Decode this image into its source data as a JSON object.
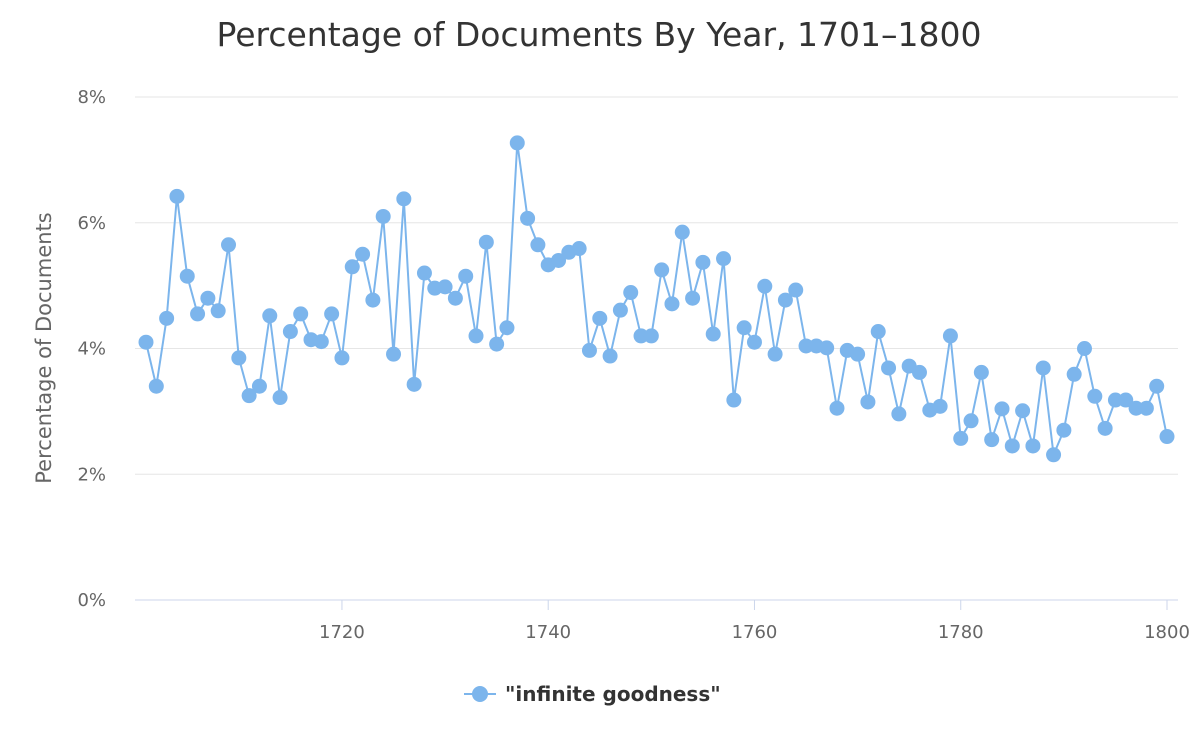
{
  "chart_data": {
    "type": "line",
    "title": "Percentage of Documents By Year, 1701–1800",
    "ylabel": "Percentage of Documents",
    "xlabel": "",
    "xlim": [
      1701,
      1800
    ],
    "ylim": [
      0,
      8
    ],
    "y_ticks": [
      0,
      2,
      4,
      6,
      8
    ],
    "y_tick_labels": [
      "0%",
      "2%",
      "4%",
      "6%",
      "8%"
    ],
    "x_ticks": [
      1720,
      1740,
      1760,
      1780,
      1800
    ],
    "x_tick_labels": [
      "1720",
      "1740",
      "1760",
      "1780",
      "1800"
    ],
    "grid": true,
    "legend_position": "bottom-center",
    "color": "#7cb5ec",
    "series": [
      {
        "name": "\"infinite goodness\"",
        "x": [
          1701,
          1702,
          1703,
          1704,
          1705,
          1706,
          1707,
          1708,
          1709,
          1710,
          1711,
          1712,
          1713,
          1714,
          1715,
          1716,
          1717,
          1718,
          1719,
          1720,
          1721,
          1722,
          1723,
          1724,
          1725,
          1726,
          1727,
          1728,
          1729,
          1730,
          1731,
          1732,
          1733,
          1734,
          1735,
          1736,
          1737,
          1738,
          1739,
          1740,
          1741,
          1742,
          1743,
          1744,
          1745,
          1746,
          1747,
          1748,
          1749,
          1750,
          1751,
          1752,
          1753,
          1754,
          1755,
          1756,
          1757,
          1758,
          1759,
          1760,
          1761,
          1762,
          1763,
          1764,
          1765,
          1766,
          1767,
          1768,
          1769,
          1770,
          1771,
          1772,
          1773,
          1774,
          1775,
          1776,
          1777,
          1778,
          1779,
          1780,
          1781,
          1782,
          1783,
          1784,
          1785,
          1786,
          1787,
          1788,
          1789,
          1790,
          1791,
          1792,
          1793,
          1794,
          1795,
          1796,
          1797,
          1798,
          1799,
          1800
        ],
        "values": [
          4.1,
          3.4,
          4.48,
          6.42,
          5.15,
          4.55,
          4.8,
          4.6,
          5.65,
          3.85,
          3.25,
          3.4,
          4.52,
          3.22,
          4.27,
          4.55,
          4.14,
          4.11,
          4.55,
          3.85,
          5.3,
          5.5,
          4.77,
          6.1,
          3.91,
          6.38,
          3.43,
          5.2,
          4.96,
          4.98,
          4.8,
          5.15,
          4.2,
          5.69,
          4.07,
          4.33,
          7.27,
          6.07,
          5.65,
          5.33,
          5.4,
          5.53,
          5.59,
          3.97,
          4.48,
          3.88,
          4.61,
          4.89,
          4.2,
          4.2,
          5.25,
          4.71,
          5.85,
          4.8,
          5.37,
          4.23,
          5.43,
          3.18,
          4.33,
          4.1,
          4.99,
          3.91,
          4.77,
          4.93,
          4.04,
          4.04,
          4.01,
          3.05,
          3.97,
          3.91,
          3.15,
          4.27,
          3.69,
          2.96,
          3.72,
          3.62,
          3.02,
          3.08,
          4.2,
          2.57,
          2.85,
          3.62,
          2.55,
          3.04,
          2.45,
          3.01,
          2.45,
          3.69,
          2.31,
          2.7,
          3.59,
          4.0,
          3.24,
          2.73,
          3.18,
          3.18,
          3.05,
          3.05,
          3.4,
          2.6
        ]
      }
    ]
  }
}
